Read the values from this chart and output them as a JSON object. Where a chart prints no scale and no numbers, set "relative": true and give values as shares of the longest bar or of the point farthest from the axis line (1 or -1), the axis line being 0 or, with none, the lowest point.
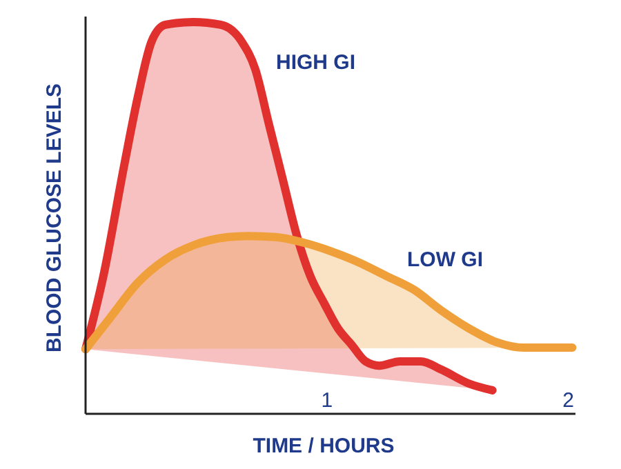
{
  "chart_data": {
    "type": "area",
    "relative": true,
    "xlabel": "TIME / HOURS",
    "ylabel": "BLOOD GLUCOSE LEVELS",
    "xlim": [
      0,
      2.03
    ],
    "xticks": [
      {
        "value": 1,
        "label": "1"
      },
      {
        "value": 2,
        "label": "2"
      }
    ],
    "tick_labels": "x",
    "grid": false,
    "series": [
      {
        "name": "HIGH GI",
        "color": "#e0312f",
        "x": [
          0,
          0.074,
          0.16,
          0.217,
          0.274,
          0.331,
          0.446,
          0.56,
          0.646,
          0.703,
          0.76,
          0.817,
          0.874,
          0.931,
          0.989,
          1.046,
          1.103,
          1.16,
          1.217,
          1.303,
          1.389,
          1.474,
          1.589,
          1.686
        ],
        "values": [
          0.165,
          0.352,
          0.634,
          0.81,
          0.951,
          0.993,
          1,
          0.993,
          0.951,
          0.88,
          0.739,
          0.599,
          0.458,
          0.352,
          0.282,
          0.218,
          0.176,
          0.134,
          0.123,
          0.134,
          0.134,
          0.113,
          0.077,
          0.06
        ]
      },
      {
        "name": "LOW GI",
        "color": "#f0a03a",
        "x": [
          0,
          0.103,
          0.217,
          0.331,
          0.446,
          0.589,
          0.674,
          0.789,
          0.903,
          1.017,
          1.131,
          1.246,
          1.36,
          1.474,
          1.589,
          1.703,
          1.817,
          2.017
        ],
        "values": [
          0.165,
          0.246,
          0.335,
          0.394,
          0.43,
          0.451,
          0.454,
          0.451,
          0.437,
          0.415,
          0.387,
          0.352,
          0.317,
          0.264,
          0.218,
          0.183,
          0.169,
          0.169
        ]
      }
    ]
  }
}
